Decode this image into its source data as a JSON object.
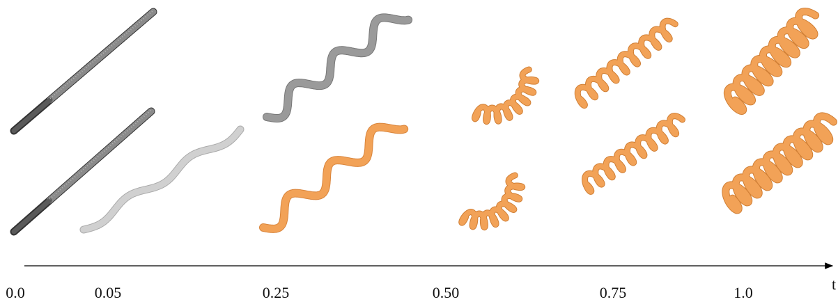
{
  "timeline": {
    "labels": [
      "0.0",
      "0.05",
      "0.25",
      "0.50",
      "0.75",
      "1.0"
    ],
    "axis_label": "t"
  }
}
